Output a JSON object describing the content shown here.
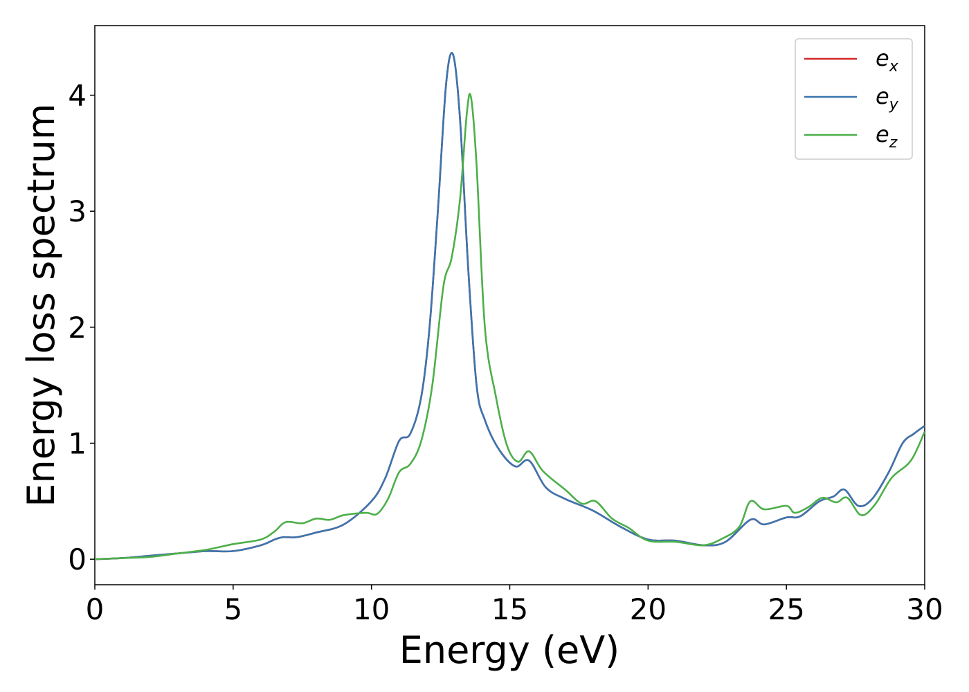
{
  "chart_data": {
    "type": "line",
    "title": "",
    "xlabel": "Energy (eV)",
    "ylabel": "Energy loss spectrum",
    "xlim": [
      0,
      30
    ],
    "ylim": [
      -0.22,
      4.6
    ],
    "xticks": [
      0,
      5,
      10,
      15,
      20,
      25,
      30
    ],
    "yticks": [
      0,
      1,
      2,
      3,
      4
    ],
    "grid": false,
    "legend_position": "top-right",
    "series": [
      {
        "name": "e",
        "subscript": "x",
        "color": "#d62728",
        "x": [
          0,
          1,
          2,
          3,
          4,
          5,
          6,
          6.5,
          6.8,
          7.3,
          8,
          9,
          10,
          10.5,
          11,
          11.4,
          11.8,
          12.1,
          12.4,
          12.7,
          12.95,
          13.2,
          13.5,
          13.8,
          14.1,
          14.6,
          15.2,
          15.7,
          16.3,
          17,
          18,
          19,
          20,
          21,
          22,
          22.8,
          23.7,
          24.2,
          25,
          25.5,
          26.2,
          26.7,
          27.1,
          27.6,
          28.1,
          28.7,
          29.2,
          29.6,
          30
        ],
        "y": [
          0,
          0.01,
          0.03,
          0.05,
          0.07,
          0.07,
          0.12,
          0.17,
          0.19,
          0.19,
          0.23,
          0.3,
          0.5,
          0.7,
          1.02,
          1.08,
          1.4,
          2.0,
          3.0,
          4.1,
          4.35,
          3.8,
          2.5,
          1.5,
          1.2,
          0.95,
          0.8,
          0.85,
          0.62,
          0.52,
          0.42,
          0.28,
          0.17,
          0.16,
          0.12,
          0.15,
          0.34,
          0.3,
          0.36,
          0.37,
          0.5,
          0.54,
          0.6,
          0.46,
          0.52,
          0.75,
          1.0,
          1.08,
          1.15
        ]
      },
      {
        "name": "e",
        "subscript": "y",
        "color": "#3b75af",
        "x": [
          0,
          1,
          2,
          3,
          4,
          5,
          6,
          6.5,
          6.8,
          7.3,
          8,
          9,
          10,
          10.5,
          11,
          11.4,
          11.8,
          12.1,
          12.4,
          12.7,
          12.95,
          13.2,
          13.5,
          13.8,
          14.1,
          14.6,
          15.2,
          15.7,
          16.3,
          17,
          18,
          19,
          20,
          21,
          22,
          22.8,
          23.7,
          24.2,
          25,
          25.5,
          26.2,
          26.7,
          27.1,
          27.6,
          28.1,
          28.7,
          29.2,
          29.6,
          30
        ],
        "y": [
          0,
          0.01,
          0.03,
          0.05,
          0.07,
          0.07,
          0.12,
          0.17,
          0.19,
          0.19,
          0.23,
          0.3,
          0.5,
          0.7,
          1.02,
          1.08,
          1.4,
          2.0,
          3.0,
          4.1,
          4.35,
          3.8,
          2.5,
          1.5,
          1.2,
          0.95,
          0.8,
          0.85,
          0.62,
          0.52,
          0.42,
          0.28,
          0.17,
          0.16,
          0.12,
          0.15,
          0.34,
          0.3,
          0.36,
          0.37,
          0.5,
          0.54,
          0.6,
          0.46,
          0.52,
          0.75,
          1.0,
          1.08,
          1.15
        ]
      },
      {
        "name": "e",
        "subscript": "z",
        "color": "#4daf4a",
        "x": [
          0,
          1,
          2,
          3,
          4,
          5,
          6,
          6.5,
          6.9,
          7.5,
          8,
          8.5,
          9,
          9.8,
          10.2,
          10.6,
          11,
          11.4,
          11.8,
          12.2,
          12.6,
          12.9,
          13.2,
          13.45,
          13.6,
          13.8,
          14.1,
          14.5,
          14.9,
          15.3,
          15.7,
          16.2,
          17,
          17.6,
          18.1,
          18.7,
          19.3,
          20,
          21,
          22,
          22.7,
          23.3,
          23.7,
          24.2,
          25,
          25.3,
          25.8,
          26.3,
          26.8,
          27.2,
          27.7,
          28.2,
          28.8,
          29.5,
          30
        ],
        "y": [
          0,
          0.01,
          0.02,
          0.05,
          0.08,
          0.13,
          0.17,
          0.24,
          0.32,
          0.31,
          0.35,
          0.34,
          0.38,
          0.4,
          0.39,
          0.52,
          0.75,
          0.82,
          1.02,
          1.5,
          2.35,
          2.6,
          3.1,
          3.85,
          3.98,
          3.4,
          2.0,
          1.4,
          0.98,
          0.84,
          0.93,
          0.76,
          0.6,
          0.48,
          0.5,
          0.35,
          0.27,
          0.16,
          0.15,
          0.12,
          0.18,
          0.28,
          0.5,
          0.43,
          0.46,
          0.4,
          0.45,
          0.53,
          0.49,
          0.53,
          0.38,
          0.47,
          0.7,
          0.85,
          1.1
        ]
      }
    ]
  }
}
